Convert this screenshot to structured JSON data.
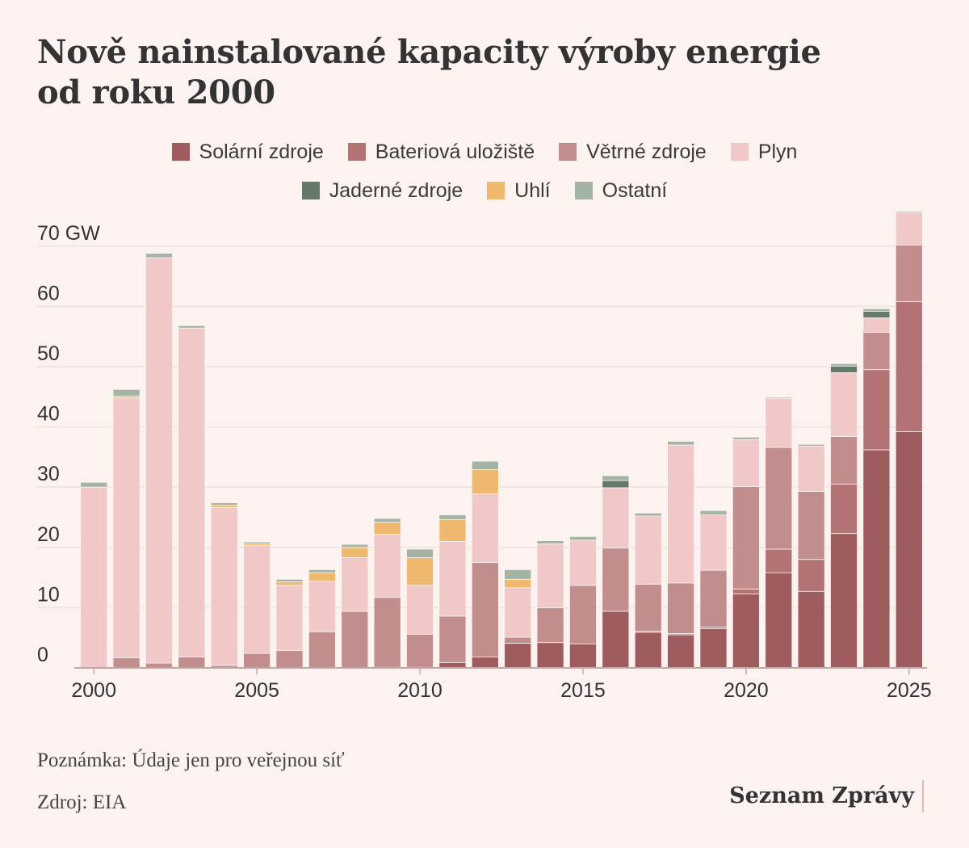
{
  "title_lines": [
    "Nově nainstalované kapacity výroby energie",
    "od roku 2000"
  ],
  "note": "Poznámka: Údaje jen pro veřejnou síť",
  "source": "Zdroj: EIA",
  "brand": "Seznam Zprávy",
  "chart_data": {
    "type": "bar",
    "stacked": true,
    "x": [
      2000,
      2001,
      2002,
      2003,
      2004,
      2005,
      2006,
      2007,
      2008,
      2009,
      2010,
      2011,
      2012,
      2013,
      2014,
      2015,
      2016,
      2017,
      2018,
      2019,
      2020,
      2021,
      2022,
      2023,
      2024,
      2025
    ],
    "xticks": [
      2000,
      2005,
      2010,
      2015,
      2020,
      2025
    ],
    "yticks": [
      0,
      10,
      20,
      30,
      40,
      50,
      60,
      70
    ],
    "ytick_labels": [
      "0",
      "10",
      "20",
      "30",
      "40",
      "50",
      "60",
      "70 GW"
    ],
    "ylim": [
      0,
      76
    ],
    "grid": true,
    "legend_position": "top",
    "series": [
      {
        "name": "Solární zdroje",
        "color": "#9e5c5f",
        "values": [
          0,
          0,
          0,
          0,
          0,
          0,
          0,
          0,
          0,
          0.1,
          0.1,
          0.9,
          1.8,
          4.1,
          4.2,
          4.0,
          9.4,
          5.9,
          5.5,
          6.5,
          12.3,
          15.8,
          12.7,
          22.3,
          36.2,
          39.2
        ]
      },
      {
        "name": "Bateriová uložiště",
        "color": "#b37374",
        "values": [
          0,
          0,
          0,
          0,
          0,
          0,
          0,
          0,
          0,
          0,
          0,
          0,
          0,
          0,
          0,
          0,
          0,
          0.2,
          0.2,
          0.3,
          0.8,
          3.9,
          5.3,
          8.2,
          13.3,
          21.6
        ]
      },
      {
        "name": "Větrné zdroje",
        "color": "#c28e8d",
        "values": [
          0,
          1.7,
          0.8,
          1.8,
          0.4,
          2.4,
          2.9,
          6.0,
          9.4,
          11.6,
          5.5,
          7.7,
          15.7,
          1.0,
          5.8,
          9.7,
          10.5,
          7.8,
          8.4,
          9.4,
          17.0,
          16.9,
          11.3,
          7.9,
          6.2,
          9.4
        ]
      },
      {
        "name": "Plyn",
        "color": "#f0c8c8",
        "values": [
          30.0,
          43.1,
          67.3,
          54.6,
          26.2,
          17.9,
          10.8,
          8.4,
          8.9,
          10.5,
          8.1,
          12.4,
          11.4,
          8.2,
          10.6,
          7.5,
          10.0,
          11.3,
          22.9,
          9.2,
          7.8,
          8.1,
          7.5,
          10.6,
          2.4,
          5.4
        ]
      },
      {
        "name": "Jaderné zdroje",
        "color": "#66786a",
        "values": [
          0,
          0,
          0,
          0,
          0,
          0,
          0,
          0,
          0,
          0,
          0,
          0,
          0,
          0,
          0,
          0,
          1.2,
          0,
          0,
          0,
          0,
          0,
          0,
          1.1,
          1.1,
          0
        ]
      },
      {
        "name": "Uhlí",
        "color": "#eeb86f",
        "values": [
          0,
          0.3,
          0,
          0,
          0.4,
          0.3,
          0.6,
          1.4,
          1.7,
          2.0,
          4.6,
          3.6,
          4.0,
          1.4,
          0,
          0,
          0,
          0,
          0,
          0,
          0,
          0,
          0,
          0,
          0,
          0
        ]
      },
      {
        "name": "Ostatní",
        "color": "#a3b3a4",
        "values": [
          0.8,
          1.1,
          0.7,
          0.4,
          0.4,
          0.3,
          0.4,
          0.5,
          0.5,
          0.6,
          1.4,
          0.8,
          1.4,
          1.6,
          0.5,
          0.6,
          0.8,
          0.5,
          0.6,
          0.7,
          0.4,
          0.2,
          0.3,
          0.4,
          0.4,
          0.2
        ]
      }
    ]
  }
}
